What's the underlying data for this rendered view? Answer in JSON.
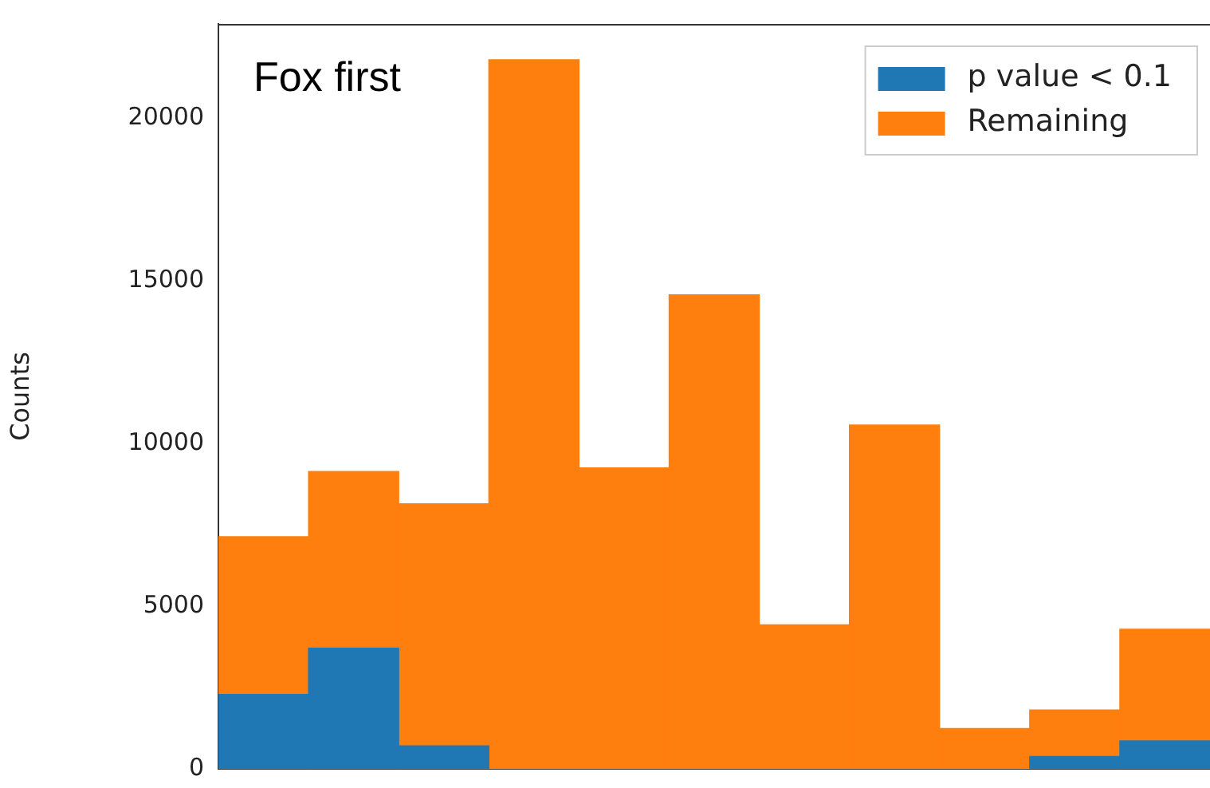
{
  "chart_data": {
    "type": "bar",
    "stacked": true,
    "categories": [
      null,
      null,
      null,
      null,
      null,
      null,
      null,
      null,
      null,
      null,
      null
    ],
    "series": [
      {
        "name": "p value < 0.1",
        "color": "#1f77b4",
        "values": [
          2290,
          3710,
          710,
          null,
          null,
          null,
          null,
          null,
          null,
          380,
          860
        ]
      },
      {
        "name": "Remaining",
        "color": "#ff7f0e",
        "values": [
          4850,
          5430,
          7440,
          21800,
          9250,
          14570,
          4430,
          10570,
          1240,
          1430,
          3430
        ]
      }
    ],
    "ylabel": "Counts",
    "ylim": [
      0,
      22900
    ],
    "yticks": [
      0,
      5000,
      10000,
      15000,
      20000
    ],
    "annotations": [
      "Fox first"
    ],
    "legend": "top right",
    "grid": false,
    "tick_labels": "y"
  }
}
